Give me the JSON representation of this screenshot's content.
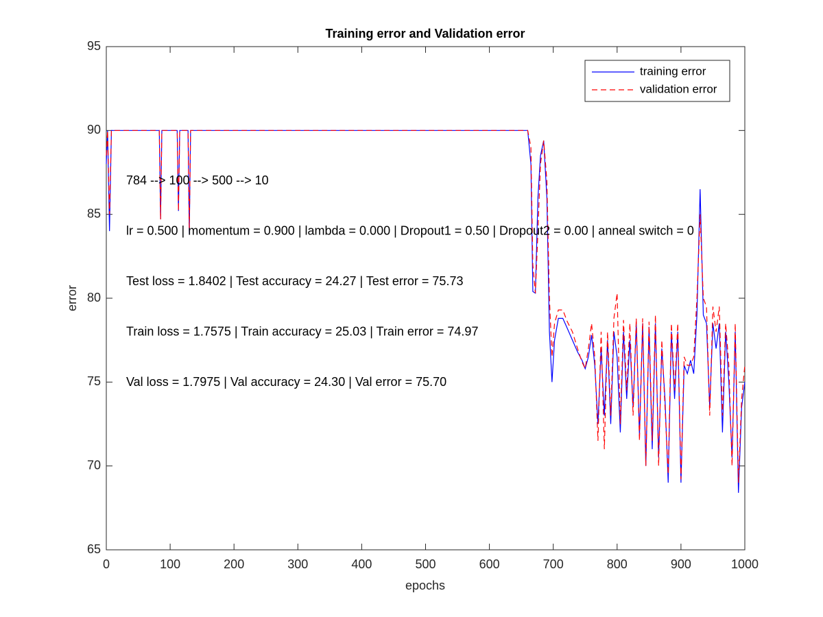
{
  "chart_data": {
    "type": "line",
    "title": "Training error and Validation error",
    "x_label": "epochs",
    "y_label": "error",
    "annotations": [
      "784 --> 100 --> 500 --> 10",
      "lr = 0.500 | momentum = 0.900 | lambda = 0.000 | Dropout1 = 0.50 | Dropout2 = 0.00 | anneal switch = 0",
      "Test loss = 1.8402 | Test accuracy = 24.27 | Test error = 75.73",
      "Train loss = 1.7575 | Train accuracy = 25.03 | Train error = 74.97",
      "Val loss = 1.7975 | Val accuracy = 24.30 | Val error = 75.70"
    ],
    "x": [
      0,
      2,
      5,
      8,
      10,
      83,
      85,
      87,
      111,
      113,
      115,
      128,
      130,
      132,
      660,
      665,
      668,
      672,
      676,
      680,
      685,
      690,
      694,
      698,
      702,
      708,
      715,
      722,
      730,
      738,
      745,
      750,
      755,
      760,
      765,
      770,
      775,
      780,
      785,
      790,
      795,
      800,
      805,
      810,
      815,
      820,
      825,
      830,
      835,
      840,
      845,
      850,
      855,
      860,
      865,
      870,
      875,
      880,
      885,
      890,
      895,
      900,
      905,
      910,
      915,
      920,
      925,
      930,
      935,
      940,
      945,
      950,
      955,
      960,
      965,
      970,
      975,
      980,
      985,
      990,
      995,
      1000
    ],
    "series": [
      {
        "name": "training error",
        "color": "#0000ff",
        "line_style": "solid",
        "values": [
          88,
          90,
          84,
          90,
          90,
          90,
          84.7,
          90,
          90,
          85.2,
          90,
          90,
          83.8,
          90,
          90,
          88,
          80.4,
          80.3,
          86,
          88.5,
          89.4,
          86,
          78,
          75,
          77.5,
          78.8,
          78.8,
          78.2,
          77.5,
          76.8,
          76.3,
          75.8,
          76.5,
          77.8,
          76,
          72.5,
          77,
          73,
          77.5,
          72.5,
          78,
          76.5,
          72,
          78,
          74,
          77.5,
          73.5,
          78.5,
          71.8,
          78.5,
          70,
          78.3,
          71,
          78.5,
          70.5,
          77,
          74,
          69,
          78,
          74,
          78,
          69,
          76,
          75.5,
          76.3,
          75.5,
          79,
          86.5,
          79,
          78.5,
          73.5,
          78.5,
          77,
          78.5,
          72,
          78,
          75,
          70.5,
          78,
          68.4,
          73.5,
          75
        ]
      },
      {
        "name": "validation error",
        "color": "#ff0000",
        "line_style": "dashed",
        "values": [
          88.5,
          90,
          85,
          90,
          90,
          90,
          84.7,
          90,
          90,
          85.2,
          90,
          90,
          84,
          90,
          90,
          89,
          82,
          80.3,
          84,
          88,
          89.4,
          87,
          80,
          76.5,
          78.5,
          79.3,
          79.3,
          78.6,
          78,
          77,
          76.2,
          75.8,
          77,
          78.5,
          76.5,
          71.5,
          78,
          71,
          78,
          73,
          78.8,
          80.3,
          72.5,
          78.7,
          74.5,
          78.5,
          73,
          78.8,
          71.5,
          78.8,
          70,
          78.6,
          71.5,
          79,
          70,
          77.5,
          73.5,
          69.5,
          78.5,
          74.5,
          78.5,
          69.2,
          76.5,
          76,
          76,
          76.5,
          80,
          85,
          80,
          79.5,
          73,
          79.5,
          78,
          79.5,
          73,
          78.5,
          76,
          70,
          78.5,
          69,
          74,
          76
        ]
      }
    ],
    "xlim": [
      0,
      1000
    ],
    "xticks": [
      0,
      100,
      200,
      300,
      400,
      500,
      600,
      700,
      800,
      900,
      1000
    ],
    "ylim": [
      65,
      95
    ],
    "yticks": [
      65,
      70,
      75,
      80,
      85,
      90,
      95
    ],
    "grid": false,
    "legend": "top-right"
  }
}
